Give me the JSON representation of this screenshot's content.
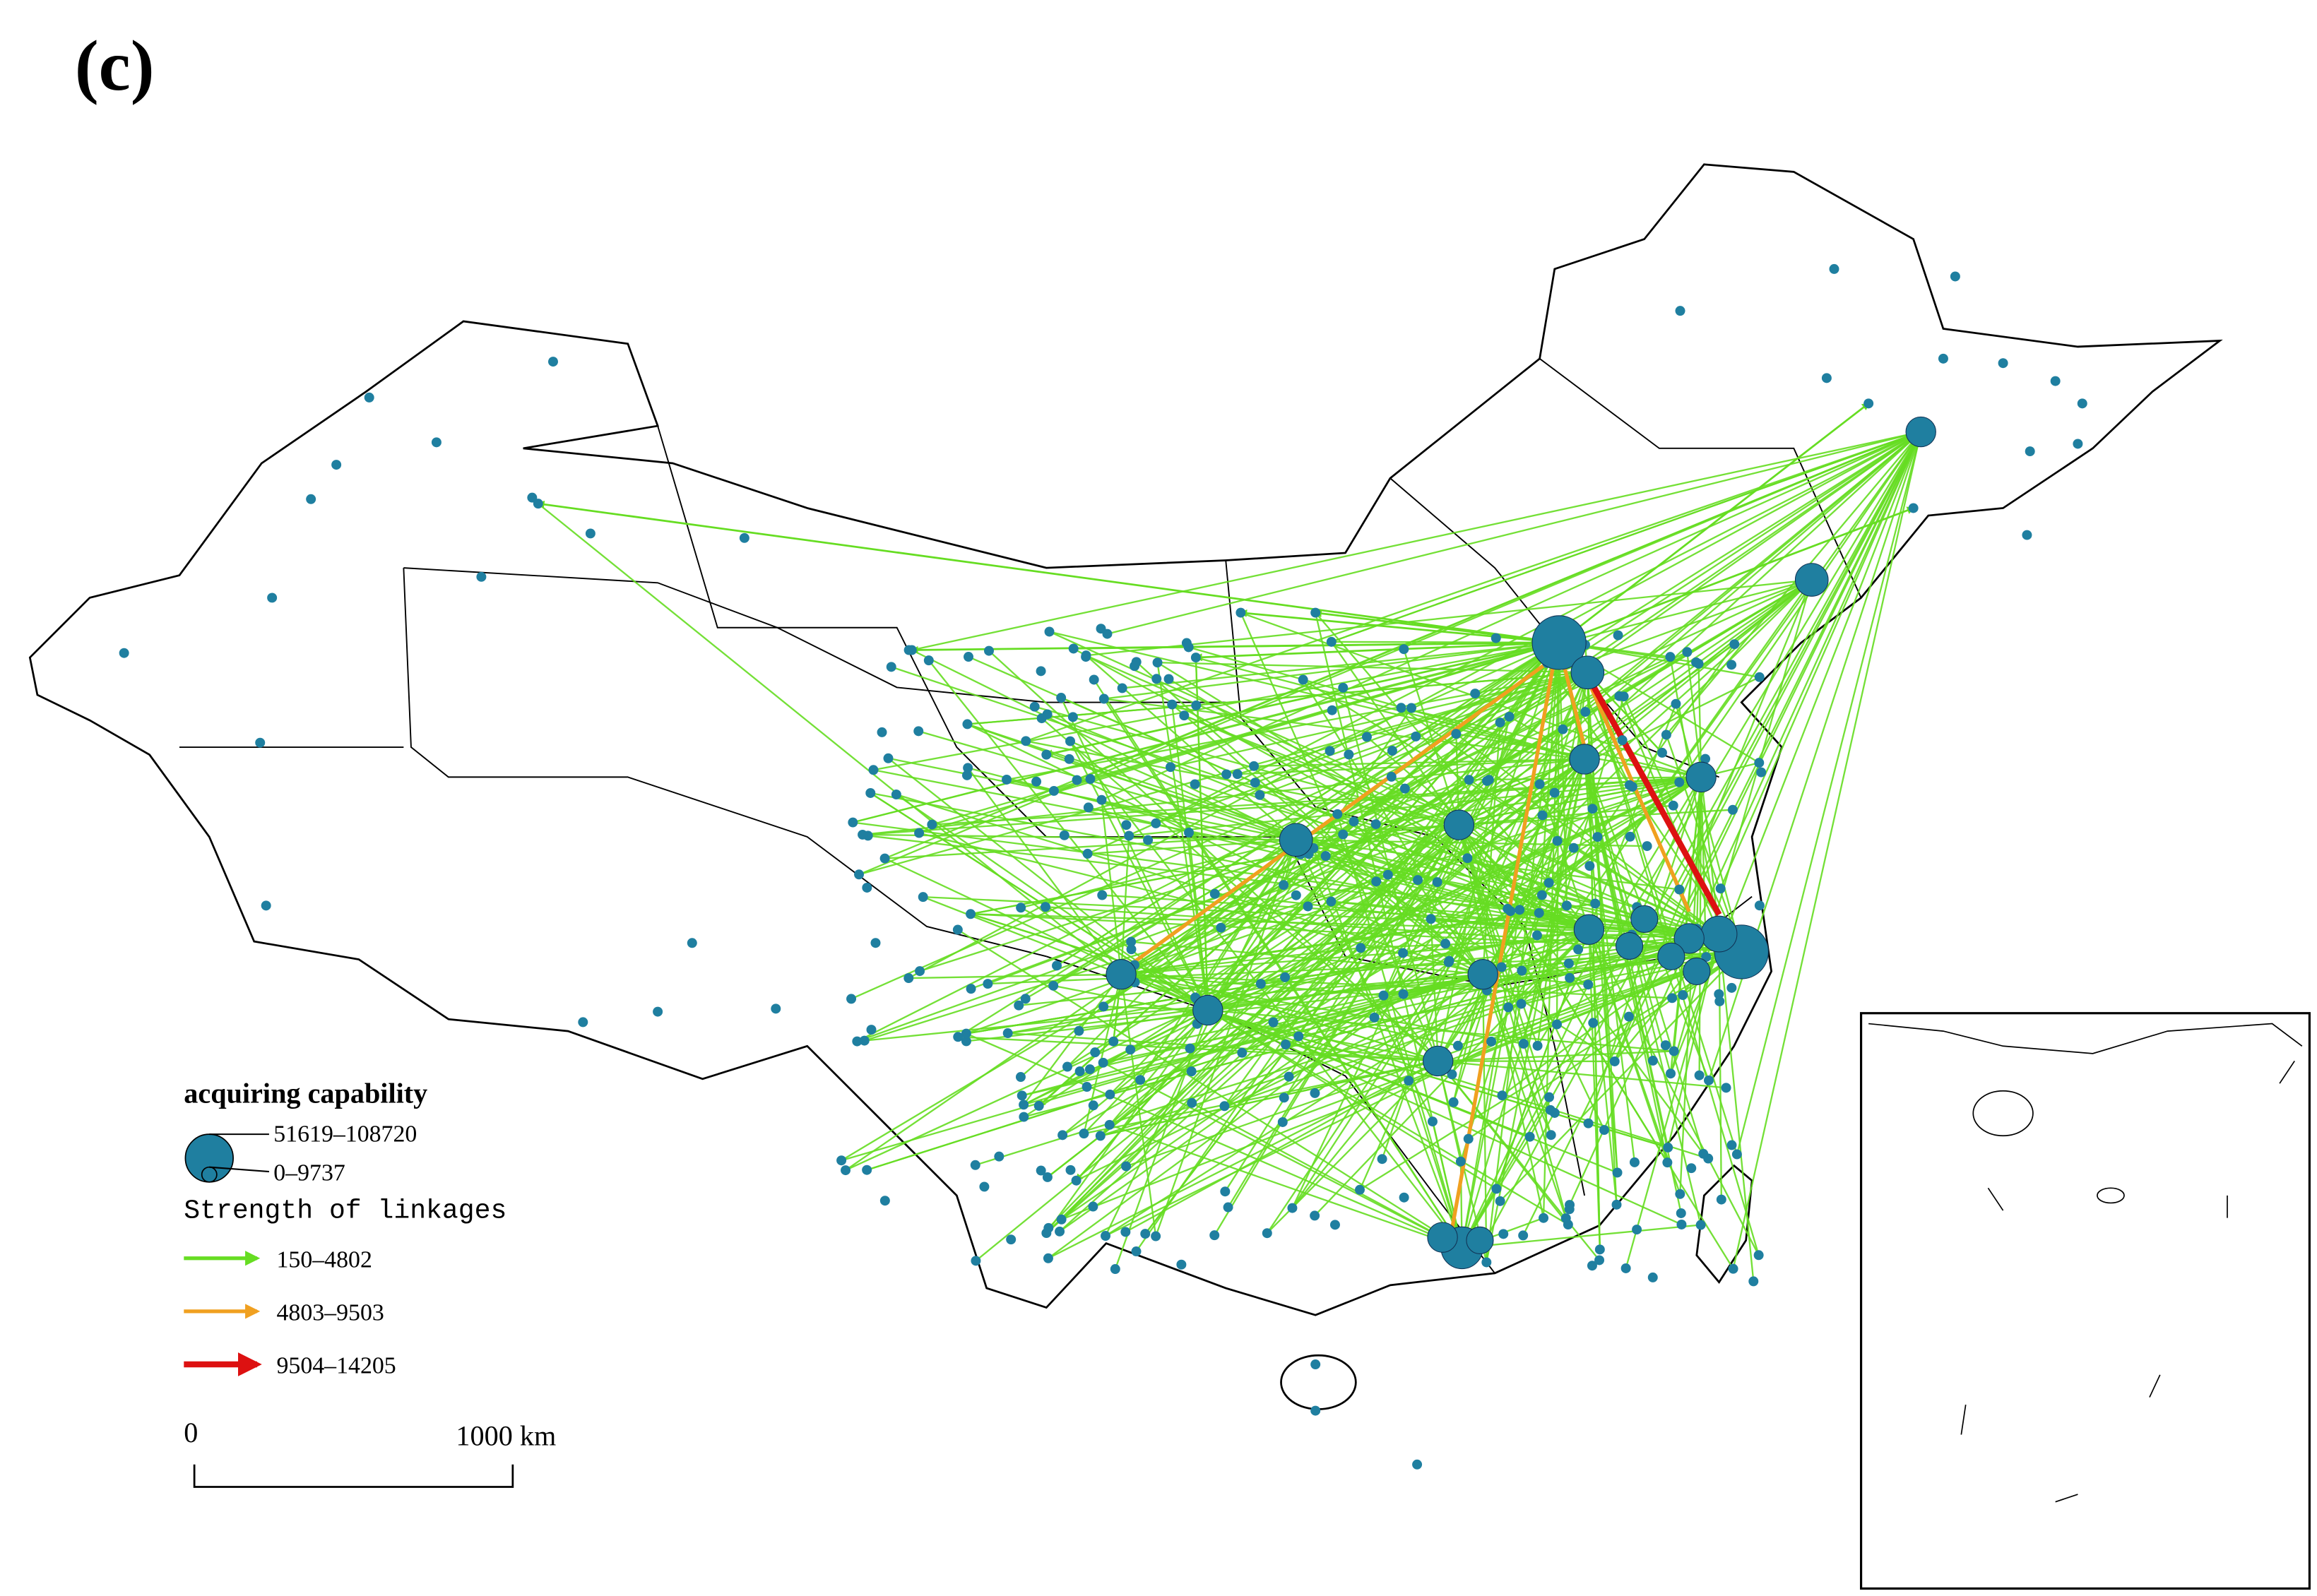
{
  "panel_label": "(c)",
  "legend": {
    "title": "acquiring capability",
    "size_classes": [
      "51619–108720",
      "0–9737"
    ],
    "bubble_color": "#1f7fa0",
    "linkage_title": "Strength of linkages",
    "linkage_classes": [
      {
        "label": "150–4802",
        "color": "#66dd22"
      },
      {
        "label": "4803–9503",
        "color": "#f0a020"
      },
      {
        "label": "9504–14205",
        "color": "#dd1111"
      }
    ]
  },
  "scale_bar": {
    "start": "0",
    "end": "1000 km"
  }
}
